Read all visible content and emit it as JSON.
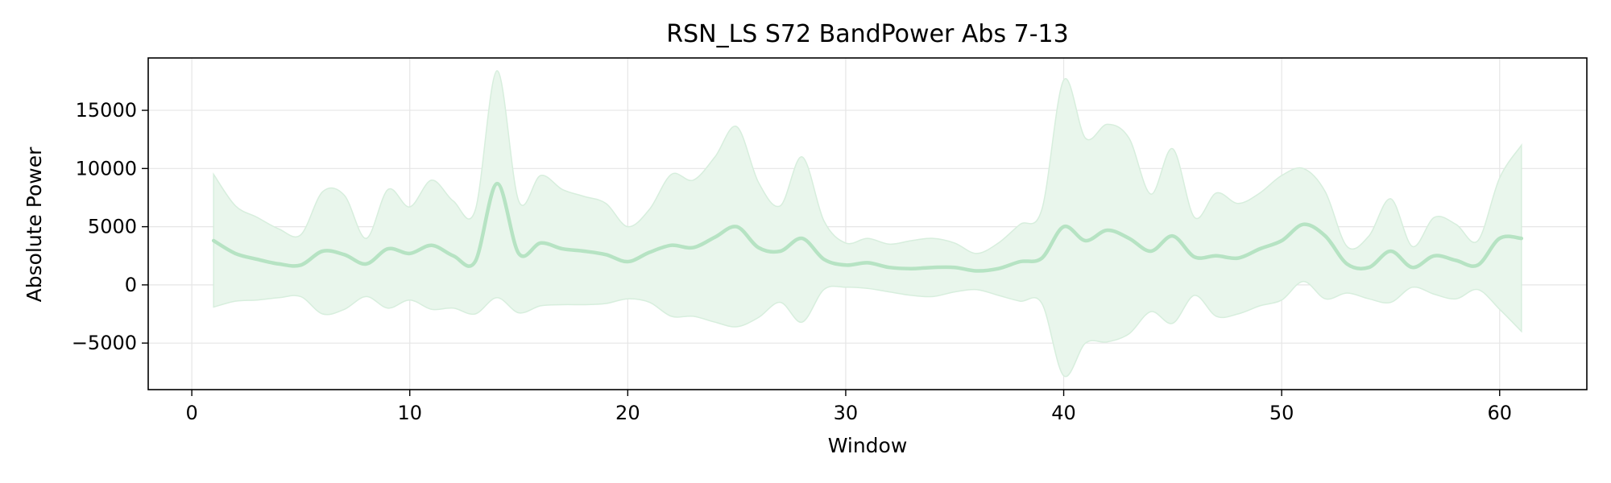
{
  "chart_data": {
    "type": "area",
    "title": "RSN_LS S72 BandPower Abs 7-13",
    "xlabel": "Window",
    "ylabel": "Absolute Power",
    "xlim": [
      -2,
      64
    ],
    "ylim": [
      -9000,
      19500
    ],
    "xticks": [
      0,
      10,
      20,
      30,
      40,
      50,
      60
    ],
    "yticks": [
      -5000,
      0,
      5000,
      10000,
      15000
    ],
    "grid": true,
    "legend": "none",
    "colors": {
      "line": "#b6e3c3",
      "band": "#e9f6ec",
      "band_edge": "#d7eedd"
    },
    "x": [
      1,
      2,
      3,
      4,
      5,
      6,
      7,
      8,
      9,
      10,
      11,
      12,
      13,
      14,
      15,
      16,
      17,
      18,
      19,
      20,
      21,
      22,
      23,
      24,
      25,
      26,
      27,
      28,
      29,
      30,
      31,
      32,
      33,
      34,
      35,
      36,
      37,
      38,
      39,
      40,
      41,
      42,
      43,
      44,
      45,
      46,
      47,
      48,
      49,
      50,
      51,
      52,
      53,
      54,
      55,
      56,
      57,
      58,
      59,
      60,
      61
    ],
    "mean": [
      3800,
      2700,
      2200,
      1800,
      1700,
      2900,
      2600,
      1800,
      3100,
      2700,
      3400,
      2500,
      2000,
      8700,
      2700,
      3600,
      3100,
      2900,
      2600,
      2000,
      2800,
      3400,
      3200,
      4100,
      5000,
      3200,
      2900,
      4000,
      2200,
      1700,
      1900,
      1500,
      1400,
      1500,
      1500,
      1200,
      1400,
      2000,
      2300,
      5000,
      3800,
      4700,
      4000,
      2900,
      4200,
      2400,
      2500,
      2300,
      3100,
      3800,
      5200,
      4200,
      1800,
      1500,
      2900,
      1500,
      2500,
      2100,
      1700,
      4000,
      4000
    ],
    "upper": [
      9500,
      6800,
      5800,
      4800,
      4300,
      8000,
      7700,
      4000,
      8200,
      6700,
      9000,
      7200,
      6400,
      18400,
      7200,
      9400,
      8200,
      7600,
      7000,
      5000,
      6500,
      9500,
      9000,
      11000,
      13600,
      8800,
      6800,
      11000,
      5500,
      3600,
      4000,
      3500,
      3800,
      4000,
      3600,
      2700,
      3600,
      5200,
      6500,
      17600,
      12600,
      13800,
      12600,
      7800,
      11700,
      5800,
      7900,
      7000,
      7900,
      9400,
      10000,
      8000,
      3300,
      4200,
      7400,
      3300,
      5800,
      5200,
      3800,
      9200,
      12000
    ],
    "lower": [
      -1900,
      -1400,
      -1300,
      -1100,
      -1000,
      -2500,
      -2100,
      -1000,
      -2000,
      -1300,
      -2100,
      -2000,
      -2500,
      -1100,
      -2400,
      -1800,
      -1700,
      -1700,
      -1600,
      -1200,
      -1500,
      -2700,
      -2700,
      -3200,
      -3600,
      -2800,
      -1500,
      -3200,
      -400,
      -200,
      -300,
      -600,
      -900,
      -1000,
      -600,
      -400,
      -900,
      -1400,
      -1600,
      -7800,
      -5000,
      -4900,
      -4200,
      -2300,
      -3300,
      -900,
      -2700,
      -2500,
      -1800,
      -1300,
      300,
      -1200,
      -700,
      -1200,
      -1500,
      -200,
      -800,
      -1200,
      -400,
      -2100,
      -4000
    ]
  }
}
